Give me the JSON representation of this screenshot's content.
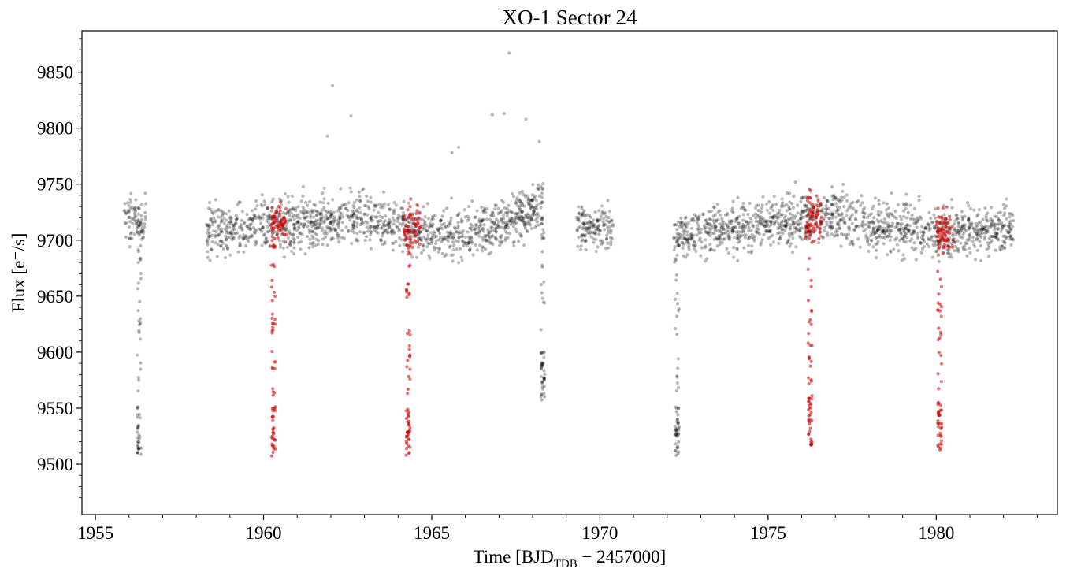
{
  "chart_data": {
    "type": "scatter",
    "title": "XO-1 Sector 24",
    "xlabel": {
      "prefix": "Time [BJD",
      "subscript": "TDB",
      "suffix": " − 2457000]"
    },
    "ylabel": "Flux [e⁻/s]",
    "xlim": [
      1954.6,
      1983.6
    ],
    "ylim": [
      9455,
      9887
    ],
    "xticks": [
      1955,
      1960,
      1965,
      1970,
      1975,
      1980
    ],
    "xtick_labels": [
      "1955",
      "1960",
      "1965",
      "1970",
      "1975",
      "1980"
    ],
    "yticks": [
      9500,
      9550,
      9600,
      9650,
      9700,
      9750,
      9800,
      9850
    ],
    "ytick_labels": [
      "9500",
      "9550",
      "9600",
      "9650",
      "9700",
      "9750",
      "9800",
      "9850"
    ],
    "grid": false,
    "series": [
      {
        "color": "#000000",
        "opacity": 0.28,
        "data_segments": [
          {
            "x_start": 1955.85,
            "x_end": 1956.5,
            "baseline": 9718,
            "scatter": 14
          },
          {
            "x_start": 1958.3,
            "x_end": 1968.3,
            "baseline_points": [
              [
                1958.3,
                9708
              ],
              [
                1961.0,
                9715
              ],
              [
                1963.0,
                9720
              ],
              [
                1965.0,
                9705
              ],
              [
                1966.5,
                9710
              ],
              [
                1968.3,
                9730
              ]
            ],
            "scatter": 15
          },
          {
            "x_start": 1969.3,
            "x_end": 1970.4,
            "baseline": 9710,
            "scatter": 14
          },
          {
            "x_start": 1972.2,
            "x_end": 1982.3,
            "baseline_points": [
              [
                1972.2,
                9703
              ],
              [
                1974.0,
                9710
              ],
              [
                1976.5,
                9722
              ],
              [
                1978.0,
                9715
              ],
              [
                1980.0,
                9705
              ],
              [
                1982.3,
                9712
              ]
            ],
            "scatter": 15
          }
        ],
        "transits": [
          {
            "center": 1956.3,
            "depth_min": 9520
          },
          {
            "center": 1968.3,
            "depth_min": 9570
          },
          {
            "center": 1972.3,
            "depth_min": 9520
          }
        ],
        "outliers": [
          [
            1962.05,
            9838
          ],
          [
            1962.6,
            9811
          ],
          [
            1961.9,
            9793
          ],
          [
            1967.3,
            9867
          ],
          [
            1966.8,
            9812
          ],
          [
            1967.15,
            9813
          ],
          [
            1967.8,
            9808
          ],
          [
            1968.2,
            9788
          ],
          [
            1965.8,
            9783
          ],
          [
            1965.6,
            9778
          ]
        ]
      },
      {
        "color": "#cc0000",
        "opacity": 0.55,
        "data_segments": [
          {
            "x_start": 1960.22,
            "x_end": 1960.7,
            "baseline": 9712,
            "scatter": 14
          },
          {
            "x_start": 1964.17,
            "x_end": 1964.67,
            "baseline": 9712,
            "scatter": 14
          },
          {
            "x_start": 1976.1,
            "x_end": 1976.6,
            "baseline": 9720,
            "scatter": 14
          },
          {
            "x_start": 1980.0,
            "x_end": 1980.5,
            "baseline": 9708,
            "scatter": 14
          }
        ],
        "transits": [
          {
            "center": 1960.3,
            "depth_min": 9520
          },
          {
            "center": 1964.3,
            "depth_min": 9520
          },
          {
            "center": 1976.25,
            "depth_min": 9530
          },
          {
            "center": 1980.1,
            "depth_min": 9525
          }
        ]
      }
    ]
  }
}
